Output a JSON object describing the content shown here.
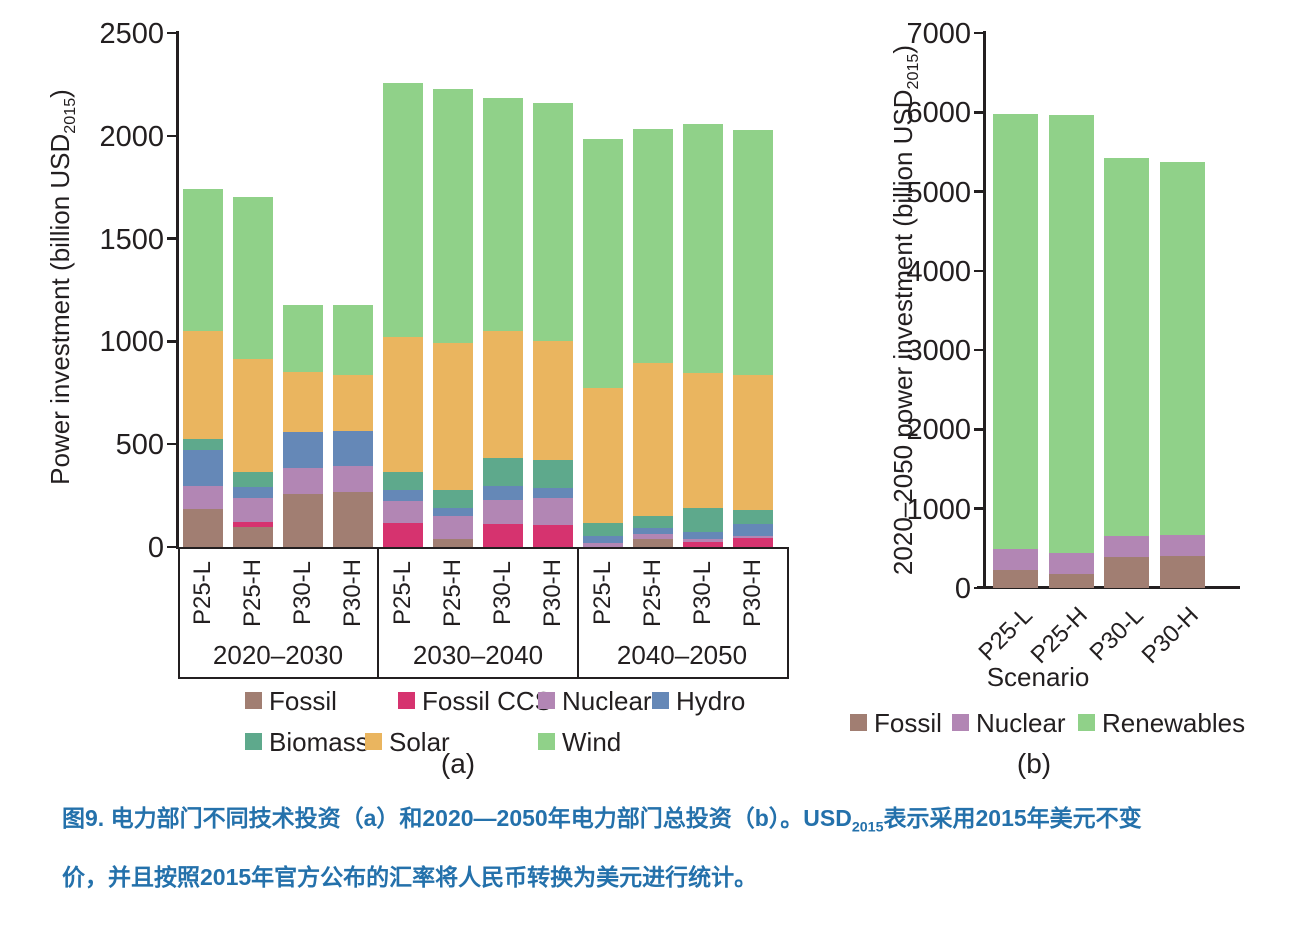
{
  "caption": {
    "line1_pre": "图9. 电力部门不同技术投资（a）和2020—2050年电力部门总投资（b）。USD",
    "line1_sub": "2015",
    "line1_post": "表示采用2015年美元不变",
    "line2": "价，并且按照2015年官方公布的汇率将人民币转换为美元进行统计。",
    "color": "#2471ab"
  },
  "chart_data": [
    {
      "id": "a",
      "type": "bar",
      "stacked": true,
      "panel_label": "(a)",
      "ylabel_pre": "Power investment (billion USD",
      "ylabel_sub": "2015",
      "ylabel_post": ")",
      "units": "billion USD2015",
      "ylim": [
        0,
        2500
      ],
      "yticks": [
        0,
        500,
        1000,
        1500,
        2000,
        2500
      ],
      "grid": false,
      "legend_position": "bottom",
      "groups": [
        "2020–2030",
        "2030–2040",
        "2040–2050"
      ],
      "categories": [
        "P25-L",
        "P25-H",
        "P30-L",
        "P30-H"
      ],
      "series": [
        {
          "name": "Fossil",
          "color": "#a17e72",
          "values": [
            185,
            95,
            260,
            268,
            0,
            40,
            0,
            0,
            0,
            40,
            0,
            0
          ]
        },
        {
          "name": "Fossil CCS",
          "color": "#d6336f",
          "values": [
            0,
            25,
            0,
            0,
            115,
            0,
            110,
            107,
            0,
            0,
            25,
            45
          ]
        },
        {
          "name": "Nuclear",
          "color": "#b286b4",
          "values": [
            110,
            120,
            123,
            127,
            110,
            112,
            120,
            131,
            18,
            22,
            15,
            10
          ]
        },
        {
          "name": "Hydro",
          "color": "#6588b7",
          "values": [
            175,
            53,
            178,
            170,
            50,
            36,
            68,
            48,
            37,
            29,
            34,
            55
          ]
        },
        {
          "name": "Biomass",
          "color": "#5ea98c",
          "values": [
            55,
            72,
            0,
            0,
            90,
            89,
            136,
            137,
            60,
            61,
            117,
            70
          ]
        },
        {
          "name": "Solar",
          "color": "#eab55f",
          "values": [
            525,
            550,
            290,
            270,
            655,
            713,
            618,
            580,
            660,
            743,
            654,
            655
          ]
        },
        {
          "name": "Wind",
          "color": "#90d189",
          "values": [
            690,
            785,
            325,
            340,
            1235,
            1240,
            1133,
            1157,
            1210,
            1140,
            1210,
            1195
          ]
        }
      ],
      "bar_totals": [
        1740,
        1700,
        1175,
        1175,
        2255,
        2230,
        2185,
        2160,
        1985,
        2035,
        2055,
        2030
      ]
    },
    {
      "id": "b",
      "type": "bar",
      "stacked": true,
      "panel_label": "(b)",
      "ylabel_pre": "2020–2050 power investment (billion USD",
      "ylabel_sub": "2015",
      "ylabel_post": ")",
      "xlabel": "Scenario",
      "units": "billion USD2015",
      "ylim": [
        0,
        7000
      ],
      "yticks": [
        0,
        1000,
        2000,
        3000,
        4000,
        5000,
        6000,
        7000
      ],
      "grid": false,
      "legend_position": "bottom",
      "categories": [
        "P25-L",
        "P25-H",
        "P30-L",
        "P30-H"
      ],
      "series": [
        {
          "name": "Fossil",
          "color": "#a17e72",
          "values": [
            230,
            180,
            385,
            405
          ]
        },
        {
          "name": "Nuclear",
          "color": "#b286b4",
          "values": [
            260,
            265,
            265,
            265
          ]
        },
        {
          "name": "Renewables",
          "color": "#90d189",
          "values": [
            5490,
            5525,
            4770,
            4700
          ]
        }
      ],
      "bar_totals": [
        5980,
        5970,
        5420,
        5370
      ]
    }
  ]
}
